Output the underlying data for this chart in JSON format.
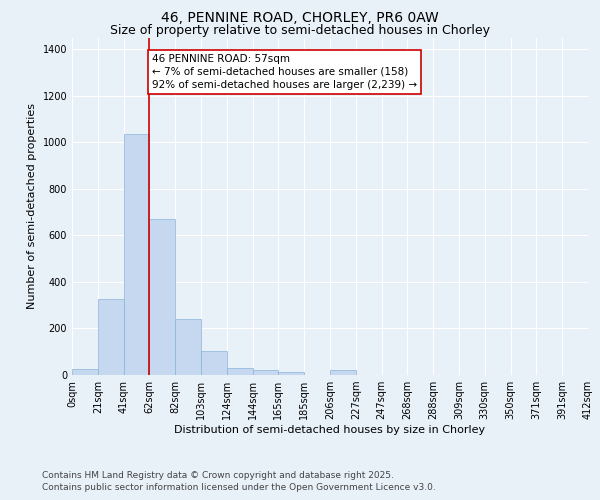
{
  "title_line1": "46, PENNINE ROAD, CHORLEY, PR6 0AW",
  "title_line2": "Size of property relative to semi-detached houses in Chorley",
  "xlabel": "Distribution of semi-detached houses by size in Chorley",
  "ylabel": "Number of semi-detached properties",
  "footnote": "Contains HM Land Registry data © Crown copyright and database right 2025.\nContains public sector information licensed under the Open Government Licence v3.0.",
  "bar_color": "#c5d8f0",
  "bar_edge_color": "#8ab4d8",
  "vline_color": "#cc0000",
  "vline_x": 3,
  "annotation_text": "46 PENNINE ROAD: 57sqm\n← 7% of semi-detached houses are smaller (158)\n92% of semi-detached houses are larger (2,239) →",
  "annotation_box_color": "#cc0000",
  "bin_labels": [
    "0sqm",
    "21sqm",
    "41sqm",
    "62sqm",
    "82sqm",
    "103sqm",
    "124sqm",
    "144sqm",
    "165sqm",
    "185sqm",
    "206sqm",
    "227sqm",
    "247sqm",
    "268sqm",
    "288sqm",
    "309sqm",
    "330sqm",
    "350sqm",
    "371sqm",
    "391sqm",
    "412sqm"
  ],
  "bar_heights": [
    25,
    325,
    1035,
    670,
    240,
    105,
    30,
    20,
    15,
    0,
    20,
    0,
    0,
    0,
    0,
    0,
    0,
    0,
    0,
    0
  ],
  "ylim": [
    0,
    1450
  ],
  "yticks": [
    0,
    200,
    400,
    600,
    800,
    1000,
    1200,
    1400
  ],
  "background_color": "#e8f0f8",
  "plot_bg_color": "#e8f0f8",
  "grid_color": "#ffffff",
  "title_fontsize": 10,
  "subtitle_fontsize": 9,
  "axis_label_fontsize": 8,
  "tick_fontsize": 7,
  "footnote_fontsize": 6.5,
  "annotation_fontsize": 7.5
}
